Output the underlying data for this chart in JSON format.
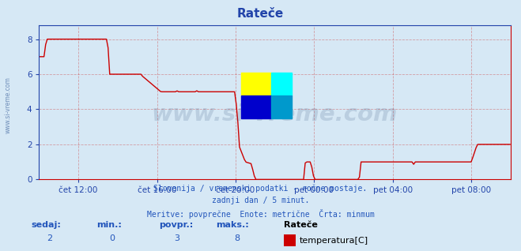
{
  "title": "Rateče",
  "bg_color": "#d6e8f5",
  "plot_bg_color": "#d6e8f5",
  "line_color": "#cc0000",
  "axis_color": "#2244aa",
  "grid_color": "#cc4444",
  "grid_alpha": 0.45,
  "ylim": [
    0,
    8.8
  ],
  "yticks": [
    0,
    2,
    4,
    6,
    8
  ],
  "xlabel_ticks": [
    "čet 12:00",
    "čet 16:00",
    "čet 20:00",
    "pet 00:00",
    "pet 04:00",
    "pet 08:00"
  ],
  "xtick_positions": [
    2,
    6,
    10,
    14,
    18,
    22
  ],
  "subtitle_lines": [
    "Slovenija / vremenski podatki - ročne postaje.",
    "zadnji dan / 5 minut.",
    "Meritve: povprečne  Enote: metrične  Črta: minmum"
  ],
  "subtitle_color": "#2255bb",
  "footer_labels": [
    "sedaj:",
    "min.:",
    "povpr.:",
    "maks.:"
  ],
  "footer_values": [
    "2",
    "0",
    "3",
    "8"
  ],
  "footer_station": "Rateče",
  "footer_series": "temperatura[C]",
  "footer_color": "#2255bb",
  "watermark_text": "www.si-vreme.com",
  "watermark_color": "#1a3a6a",
  "watermark_alpha": 0.15,
  "side_label": "www.si-vreme.com",
  "side_label_color": "#5577aa",
  "n_points": 288,
  "x_hours_start": 0,
  "x_hours_end": 24,
  "xlim": [
    0,
    24
  ]
}
